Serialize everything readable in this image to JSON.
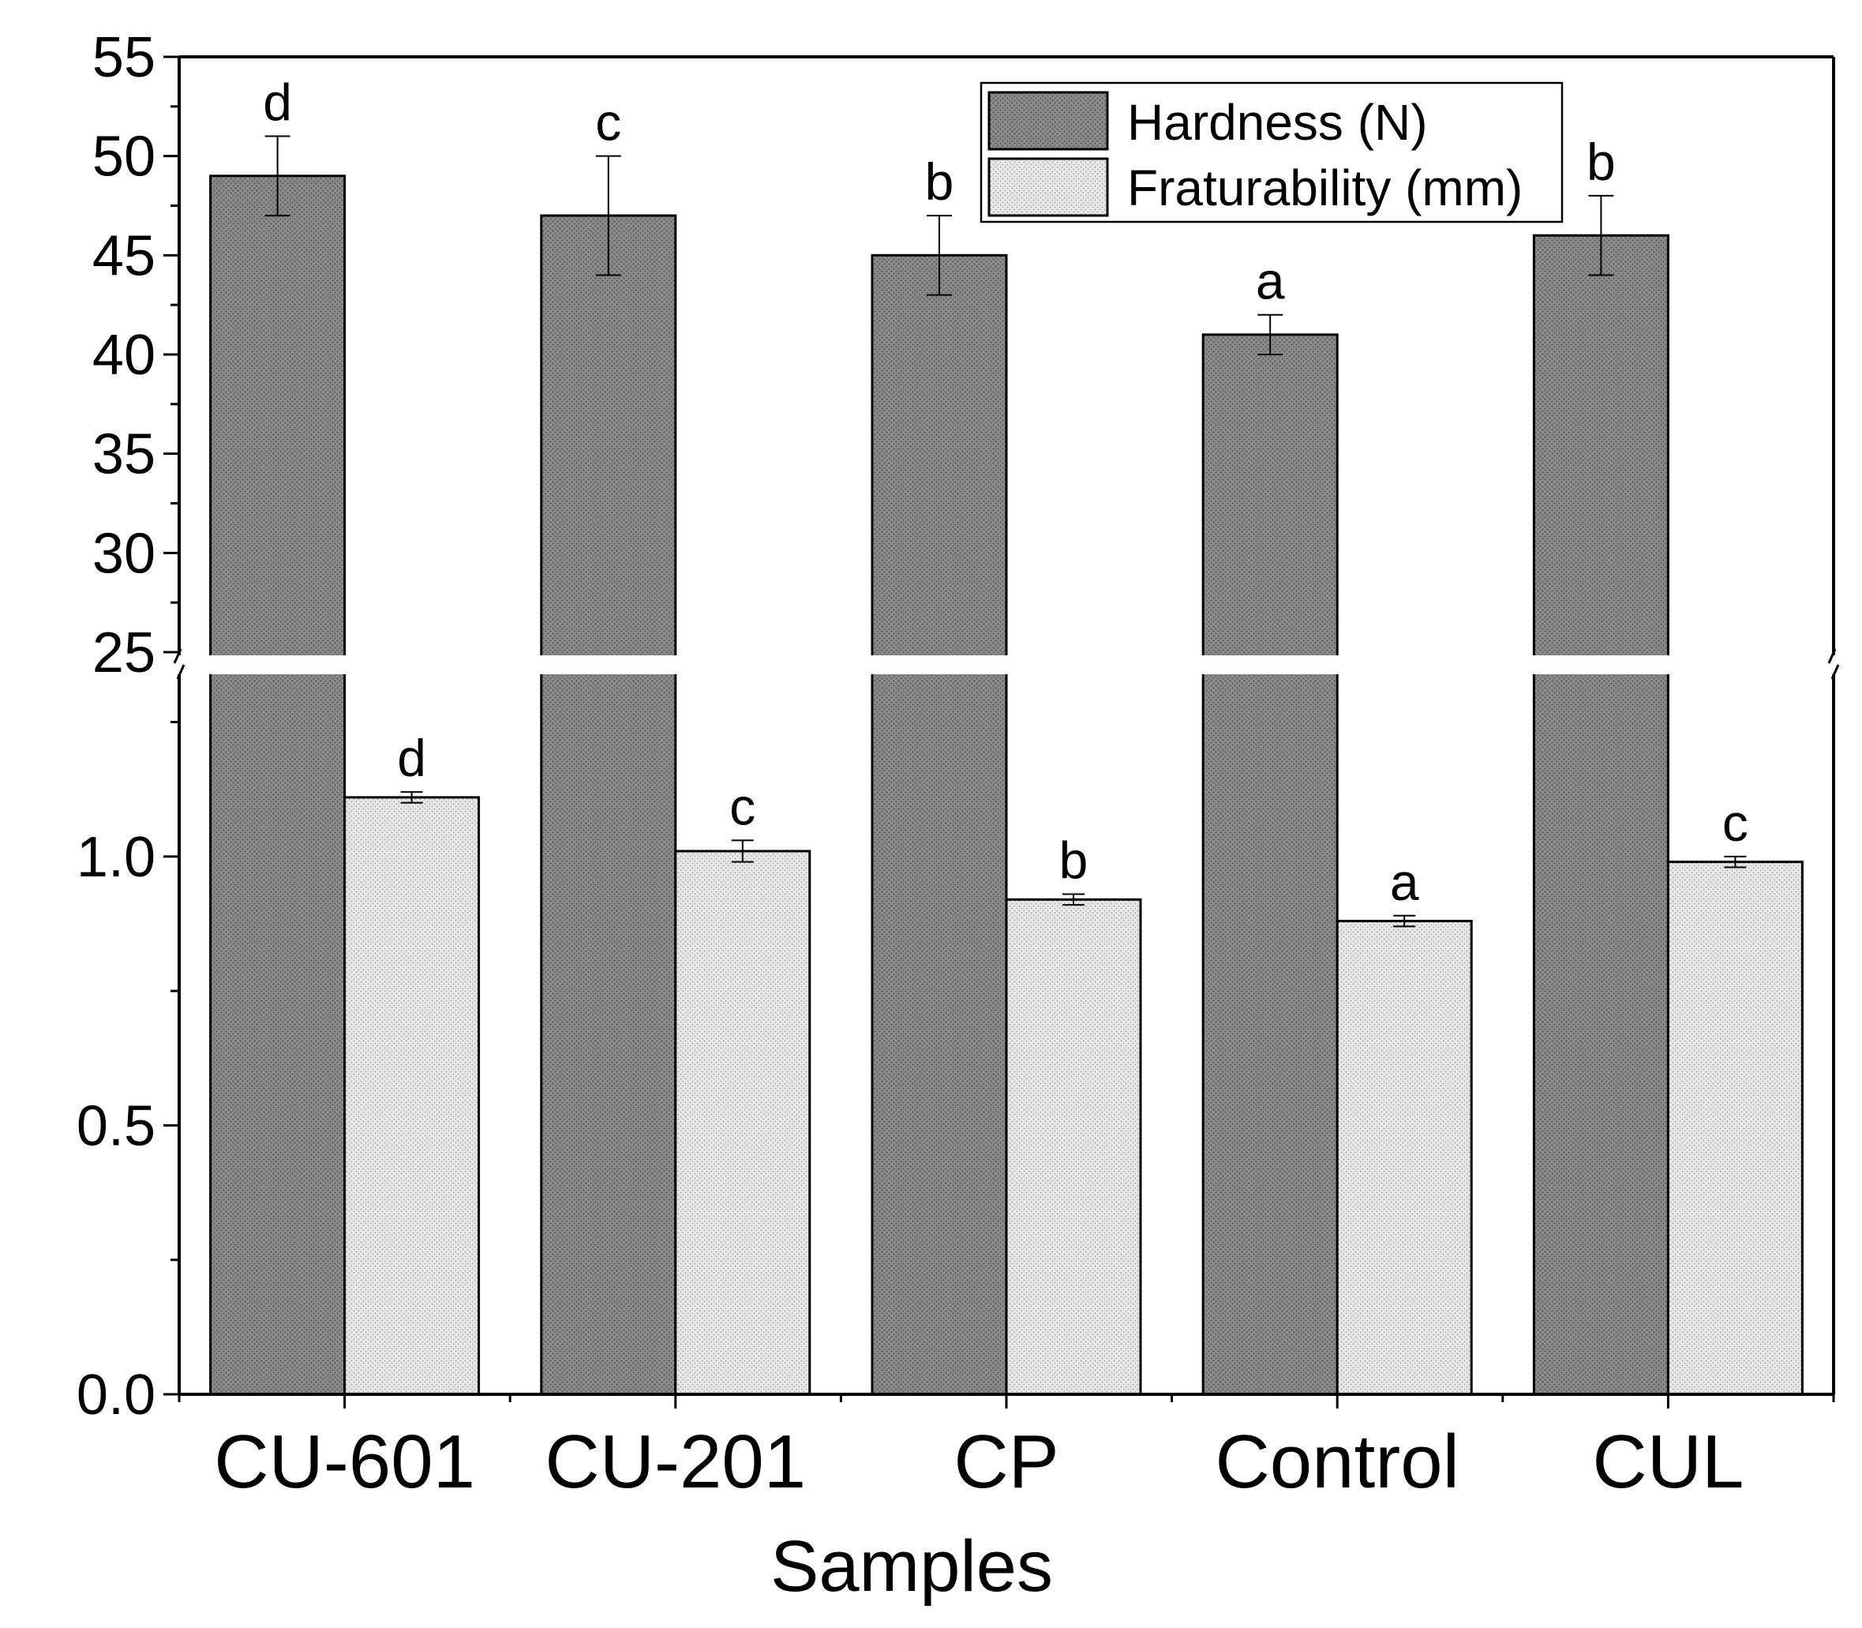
{
  "chart_data": {
    "type": "bar",
    "broken_axis": true,
    "title": "",
    "xlabel": "Samples",
    "ylabel": "",
    "categories": [
      "CU-601",
      "CU-201",
      "CP",
      "Control",
      "CUL"
    ],
    "series": [
      {
        "name": "Hardness (N)",
        "values": [
          49,
          47,
          45,
          41,
          46
        ],
        "errors": [
          2,
          3,
          2,
          1,
          2
        ],
        "significance": [
          "d",
          "c",
          "b",
          "a",
          "b"
        ],
        "color": "#888888"
      },
      {
        "name": "Fraturability (mm)",
        "values": [
          1.11,
          1.01,
          0.92,
          0.88,
          0.99
        ],
        "errors": [
          0.01,
          0.02,
          0.01,
          0.01,
          0.01
        ],
        "significance": [
          "d",
          "c",
          "b",
          "a",
          "c"
        ],
        "color": "#dedede"
      }
    ],
    "upper_axis": {
      "ylim": [
        25,
        55
      ],
      "ticks": [
        "25",
        "30",
        "35",
        "40",
        "45",
        "50",
        "55"
      ]
    },
    "lower_axis": {
      "ylim": [
        0,
        1.38
      ],
      "ticks": [
        "0.0",
        "0.5",
        "1.0"
      ]
    },
    "legend": {
      "position": "top-right",
      "entries": [
        "Hardness (N)",
        "Fraturability (mm)"
      ]
    }
  }
}
